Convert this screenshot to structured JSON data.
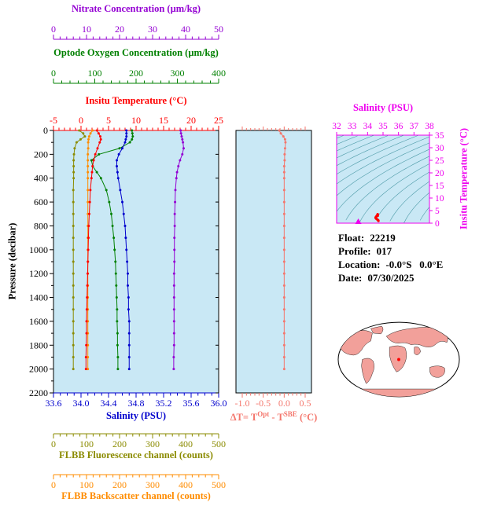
{
  "figure": {
    "bg": "#FFFFFF",
    "panel_bg": "#C9E8F5"
  },
  "info": {
    "lines": [
      {
        "label": "Float:",
        "value": "22219"
      },
      {
        "label": "Profile:",
        "value": "017"
      },
      {
        "label": "Location:",
        "value": "-0.0°S   0.0°E"
      },
      {
        "label": "Date:",
        "value": "07/30/2025"
      }
    ]
  },
  "map": {
    "type": "world-map",
    "description": "Global map (elliptical projection) with float location marker at 0°, 0°",
    "land_color": "#F2A09A",
    "ocean_color": "#FFFFFF",
    "outline_color": "#000000",
    "marker_color": "#FF0000"
  },
  "chart_data": [
    {
      "type": "line",
      "description": "Float vertical profiles versus pressure; each series has its own colored x-axis",
      "grid": false,
      "y_axis": {
        "title": "Pressure (decibar)",
        "range": [
          0,
          2200
        ],
        "tick_labels": [
          "0",
          "200",
          "400",
          "600",
          "800",
          "1000",
          "1200",
          "1400",
          "1600",
          "1800",
          "2000",
          "2200"
        ]
      },
      "x_axes": {
        "nitrate": {
          "title": "Nitrate Concentration (µm/kg)",
          "color": "#9400D3",
          "range": [
            0,
            50
          ],
          "tick_labels": [
            "0",
            "10",
            "20",
            "30",
            "40",
            "50"
          ]
        },
        "oxygen": {
          "title": "Optode Oxygen Concentration (µm/kg)",
          "color": "#008000",
          "range": [
            0,
            400
          ],
          "tick_labels": [
            "0",
            "100",
            "200",
            "300",
            "400"
          ]
        },
        "temperature": {
          "title": "Insitu Temperature (°C)",
          "color": "#FF0000",
          "range": [
            -5,
            25
          ],
          "tick_labels": [
            "-5",
            "0",
            "5",
            "10",
            "15",
            "20",
            "25"
          ]
        },
        "salinity": {
          "title": "Salinity (PSU)",
          "color": "#0000CD",
          "range": [
            33.6,
            36.0
          ],
          "tick_labels": [
            "33.6",
            "34.0",
            "34.4",
            "34.8",
            "35.2",
            "35.6",
            "36.0"
          ]
        },
        "fluorescence": {
          "title": "FLBB Fluorescence channel (counts)",
          "color": "#8B8B00",
          "range": [
            0,
            500
          ],
          "tick_labels": [
            "0",
            "100",
            "200",
            "300",
            "400",
            "500"
          ]
        },
        "backscatter": {
          "title": "FLBB Backscatter channel (counts)",
          "color": "#FF8C00",
          "range": [
            0,
            500
          ],
          "tick_labels": [
            "0",
            "100",
            "200",
            "300",
            "400",
            "500"
          ]
        }
      },
      "pressure": [
        0,
        25,
        50,
        75,
        100,
        150,
        200,
        250,
        300,
        350,
        400,
        500,
        600,
        700,
        800,
        900,
        1000,
        1100,
        1200,
        1300,
        1400,
        1500,
        1600,
        1700,
        1800,
        1900,
        2000
      ],
      "series": [
        {
          "name": "FLBB Fluorescence channel",
          "axis": "fluorescence",
          "units": "counts",
          "color": "#8B8B00",
          "values": [
            78,
            90,
            95,
            82,
            70,
            64,
            62,
            61,
            61,
            61,
            61,
            60,
            60,
            60,
            60,
            60,
            60,
            60,
            60,
            60,
            60,
            60,
            60,
            60,
            60,
            60,
            60
          ]
        },
        {
          "name": "FLBB Backscatter channel",
          "axis": "backscatter",
          "units": "counts",
          "color": "#FF8C00",
          "values": [
            118,
            112,
            108,
            106,
            105,
            105,
            104,
            104,
            104,
            104,
            104,
            104,
            104,
            104,
            104,
            104,
            104,
            104,
            104,
            104,
            104,
            104,
            104,
            104,
            104,
            104,
            104
          ]
        },
        {
          "name": "Nitrate Concentration",
          "axis": "nitrate",
          "units": "µm/kg",
          "color": "#9400D3",
          "values": [
            38.5,
            38.6,
            38.8,
            39.0,
            39.2,
            39.4,
            39.0,
            38.3,
            37.8,
            37.4,
            37.2,
            36.9,
            36.8,
            36.7,
            36.7,
            36.6,
            36.6,
            36.6,
            36.5,
            36.5,
            36.5,
            36.5,
            36.5,
            36.5,
            36.5,
            36.4,
            36.4
          ]
        },
        {
          "name": "Optode Oxygen Concentration",
          "axis": "oxygen",
          "units": "µm/kg",
          "color": "#008000",
          "values": [
            190,
            191,
            192,
            190,
            185,
            160,
            110,
            92,
            95,
            105,
            115,
            128,
            135,
            140,
            143,
            146,
            148,
            150,
            151,
            152,
            153,
            154,
            154,
            155,
            155,
            156,
            156
          ]
        },
        {
          "name": "Salinity",
          "axis": "salinity",
          "units": "PSU",
          "color": "#0000CD",
          "values": [
            34.66,
            34.66,
            34.66,
            34.65,
            34.64,
            34.6,
            34.55,
            34.52,
            34.52,
            34.53,
            34.54,
            34.57,
            34.6,
            34.62,
            34.64,
            34.65,
            34.66,
            34.67,
            34.68,
            34.68,
            34.69,
            34.69,
            34.7,
            34.7,
            34.7,
            34.7,
            34.7
          ]
        },
        {
          "name": "Insitu Temperature",
          "axis": "temperature",
          "units": "°C",
          "color": "#FF0000",
          "values": [
            2.9,
            3.2,
            3.5,
            3.6,
            3.4,
            3.0,
            2.6,
            2.3,
            2.1,
            2.0,
            1.9,
            1.7,
            1.6,
            1.5,
            1.4,
            1.35,
            1.3,
            1.25,
            1.2,
            1.15,
            1.1,
            1.05,
            1.0,
            1.0,
            0.95,
            0.9,
            0.9
          ]
        }
      ]
    },
    {
      "type": "scatter",
      "description": "Temperature difference (Optode minus SBE) versus pressure",
      "color": "#F4766C",
      "x_axis": {
        "title": "ΔT = T^Opt - T^SBE (°C)",
        "title_parts": {
          "p1": "ΔT= T",
          "s1": "Opt",
          "p2": " - T",
          "s2": "SBE",
          "p3": " (°C)"
        },
        "color": "#F4766C",
        "range": [
          -1.0,
          0.5
        ],
        "tick_labels": [
          "-1.0",
          "-0.5",
          "0.0",
          "0.5"
        ]
      },
      "pressure": [
        0,
        25,
        50,
        75,
        100,
        150,
        200,
        250,
        300,
        350,
        400,
        500,
        600,
        700,
        800,
        900,
        1000,
        1100,
        1200,
        1300,
        1400,
        1500,
        1600,
        1700,
        1800,
        1900,
        2000
      ],
      "values": [
        -0.12,
        -0.08,
        -0.02,
        0.02,
        0.03,
        0.02,
        0.01,
        0.01,
        0.0,
        0.0,
        0.0,
        0.0,
        0.0,
        0.0,
        0.0,
        0.0,
        0.0,
        0.0,
        0.0,
        0.0,
        0.0,
        0.0,
        0.0,
        0.0,
        0.0,
        0.0,
        0.0
      ]
    },
    {
      "type": "scatter",
      "description": "T-S diagram with isopycnal contours",
      "frame_color": "#EE00EE",
      "contour_color": "#4E9BA8",
      "color": "#FF0000",
      "x_axis": {
        "title": "Salinity (PSU)",
        "range": [
          32,
          38
        ],
        "tick_labels": [
          "32",
          "33",
          "34",
          "35",
          "36",
          "37",
          "38"
        ]
      },
      "y_axis": {
        "title": "Insitu Temperature (°C)",
        "range": [
          0,
          35
        ],
        "tick_labels": [
          "0",
          "5",
          "10",
          "15",
          "20",
          "25",
          "30",
          "35"
        ]
      },
      "points": {
        "salinity": [
          34.66,
          34.66,
          34.66,
          34.65,
          34.64,
          34.6,
          34.55,
          34.52,
          34.52,
          34.53,
          34.54,
          34.57,
          34.6,
          34.62,
          34.64,
          34.65,
          34.66,
          34.67,
          34.68,
          34.68,
          34.69,
          34.69,
          34.7,
          34.7,
          34.7,
          34.7,
          34.7
        ],
        "temperature": [
          2.9,
          3.2,
          3.5,
          3.6,
          3.4,
          3.0,
          2.6,
          2.3,
          2.1,
          2.0,
          1.9,
          1.7,
          1.6,
          1.5,
          1.4,
          1.35,
          1.3,
          1.25,
          1.2,
          1.15,
          1.1,
          1.05,
          1.0,
          1.0,
          0.95,
          0.9,
          0.9
        ]
      },
      "marker": {
        "salinity": 33.4,
        "temperature": 0.3,
        "color": "#EE00EE"
      }
    }
  ]
}
